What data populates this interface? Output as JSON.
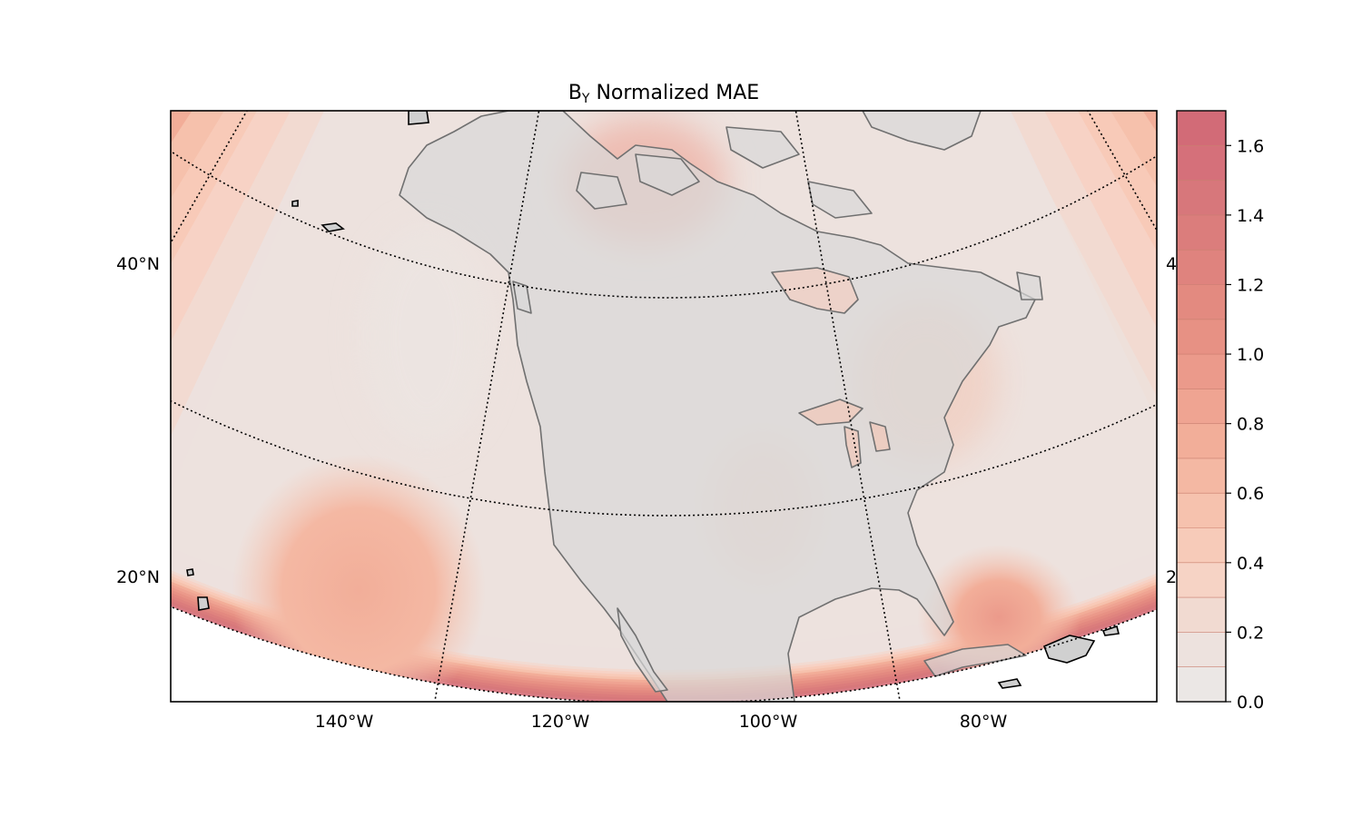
{
  "figure": {
    "title_main": "B",
    "title_sub": "Y",
    "title_rest": " Normalized MAE"
  },
  "map": {
    "projection": "conic (Lambert-like), North America",
    "lat_labels_left": [
      "40°N",
      "20°N"
    ],
    "lat_labels_right": [
      "4",
      "2"
    ],
    "lon_labels": [
      "140°W",
      "120°W",
      "100°W",
      "80°W"
    ],
    "graticule_style": "dotted black",
    "coastline_color": "#707070",
    "land_fill": "#d8d8d8",
    "island_outline_color": "#000000"
  },
  "colorbar": {
    "ticks": [
      "0.0",
      "0.2",
      "0.4",
      "0.6",
      "0.8",
      "1.0",
      "1.2",
      "1.4",
      "1.6"
    ],
    "range": [
      0.0,
      1.7
    ],
    "levels": 17,
    "colormap": "Reds (light grey → salmon → crimson), semi-transparent",
    "colors": [
      "#ebe7e5",
      "#ede2de",
      "#f1dad1",
      "#f6d3c5",
      "#f7cbb9",
      "#f6c2ae",
      "#f4b8a3",
      "#f2ae99",
      "#efa492",
      "#eb9a8b",
      "#e79184",
      "#e38a80",
      "#df837e",
      "#db7d7c",
      "#d7777b",
      "#d5707a",
      "#d26b77"
    ]
  },
  "chart_data": {
    "type": "heatmap",
    "title": "BY Normalized MAE",
    "colorbar_range": [
      0.0,
      1.7
    ],
    "colorbar_ticks": [
      0.0,
      0.2,
      0.4,
      0.6,
      0.8,
      1.0,
      1.2,
      1.4,
      1.6
    ],
    "x_ticks": [
      "140°W",
      "120°W",
      "100°W",
      "80°W"
    ],
    "y_ticks": [
      "20°N",
      "40°N"
    ]
  }
}
